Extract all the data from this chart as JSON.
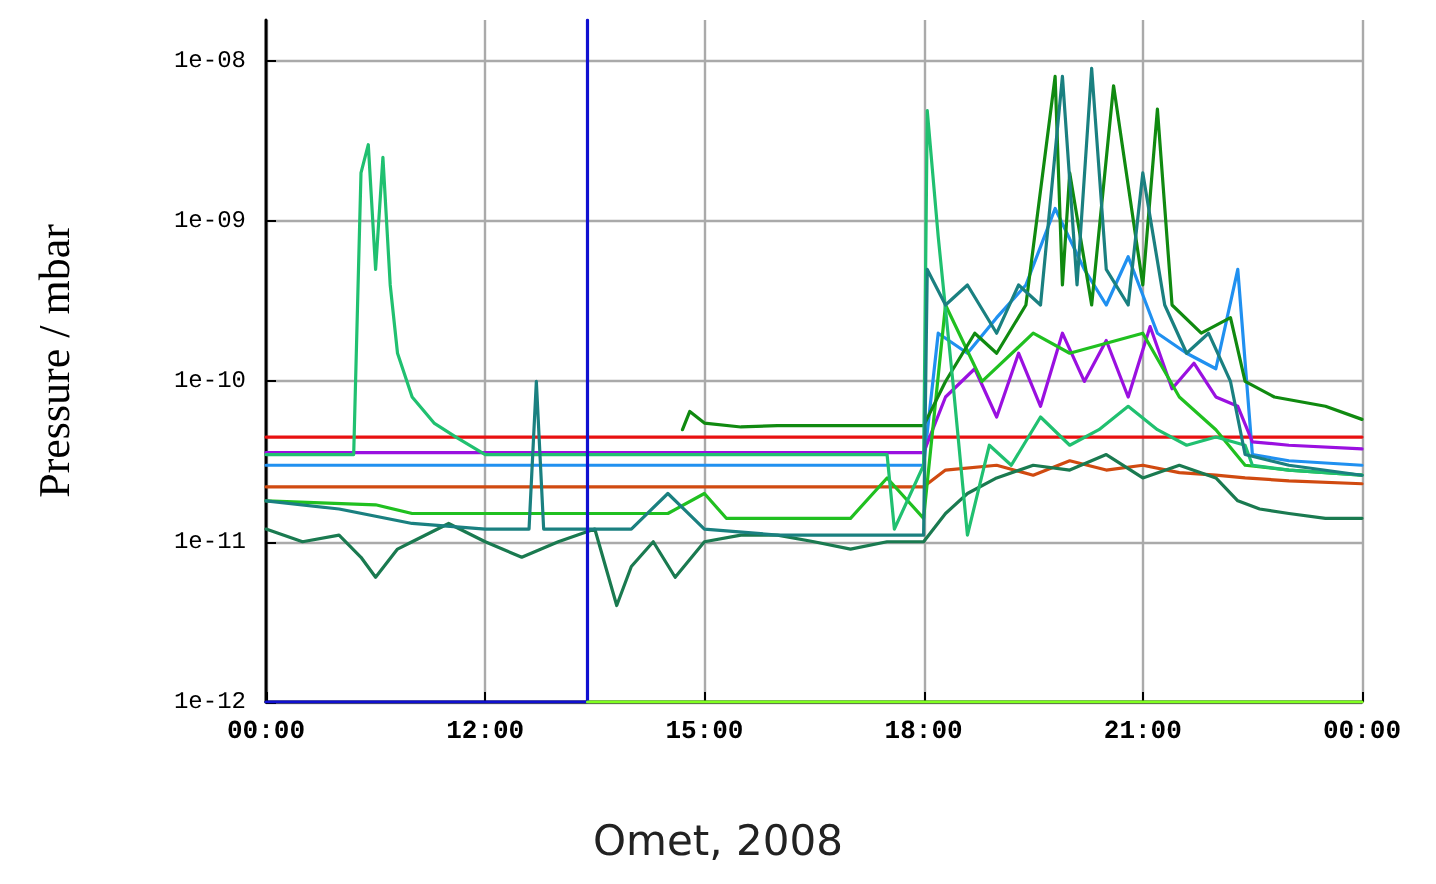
{
  "chart_data": {
    "type": "line",
    "ylabel": "Pressure / mbar",
    "annotations": [
      "Omet, 2008"
    ],
    "log": true,
    "grid": true,
    "marker": "none",
    "line_style": "solid",
    "xlim": [
      9,
      24
    ],
    "xticks": [
      {
        "value": 9,
        "label": "00:00"
      },
      {
        "value": 12,
        "label": "12:00"
      },
      {
        "value": 15,
        "label": "15:00"
      },
      {
        "value": 18,
        "label": "18:00"
      },
      {
        "value": 21,
        "label": "21:00"
      },
      {
        "value": 24,
        "label": "00:00"
      }
    ],
    "ylim": [
      1e-12,
      1.8e-08
    ],
    "yticks": [
      {
        "value": 1e-12,
        "label": "1e-12"
      },
      {
        "value": 1e-11,
        "label": "1e-11"
      },
      {
        "value": 1e-10,
        "label": "1e-10"
      },
      {
        "value": 1e-09,
        "label": "1e-09"
      },
      {
        "value": 1e-08,
        "label": "1e-08"
      }
    ],
    "series": [
      {
        "color": "#e81010",
        "x": [
          9,
          12,
          15,
          18,
          21,
          24
        ],
        "values": [
          4.5e-11,
          4.5e-11,
          4.5e-11,
          4.5e-11,
          4.5e-11,
          4.5e-11
        ]
      },
      {
        "color": "#d04a10",
        "x": [
          9,
          12,
          15,
          18,
          18.3,
          19,
          19.5,
          20,
          20.5,
          21,
          21.5,
          22,
          22.4,
          23,
          24
        ],
        "values": [
          2.2e-11,
          2.2e-11,
          2.2e-11,
          2.2e-11,
          2.8e-11,
          3e-11,
          2.6e-11,
          3.2e-11,
          2.8e-11,
          3e-11,
          2.7e-11,
          2.6e-11,
          2.5e-11,
          2.4e-11,
          2.3e-11
        ]
      },
      {
        "color": "#2090f0",
        "x": [
          9,
          12,
          15,
          16,
          18,
          18.2,
          18.6,
          19,
          19.4,
          19.8,
          20.2,
          20.5,
          20.8,
          21.2,
          21.6,
          22,
          22.3,
          22.5,
          23,
          24
        ],
        "values": [
          3e-11,
          3e-11,
          3e-11,
          3e-11,
          3e-11,
          2e-10,
          1.5e-10,
          2.5e-10,
          4e-10,
          1.2e-09,
          5e-10,
          3e-10,
          6e-10,
          2e-10,
          1.5e-10,
          1.2e-10,
          5e-10,
          3.5e-11,
          3.2e-11,
          3e-11
        ]
      },
      {
        "color": "#9a10e0",
        "x": [
          9,
          12,
          15,
          18,
          18.3,
          18.7,
          19,
          19.3,
          19.6,
          19.9,
          20.2,
          20.5,
          20.8,
          21.1,
          21.4,
          21.7,
          22,
          22.3,
          22.5,
          23,
          24
        ],
        "values": [
          3.6e-11,
          3.6e-11,
          3.6e-11,
          3.6e-11,
          8e-11,
          1.2e-10,
          6e-11,
          1.5e-10,
          7e-11,
          2e-10,
          1e-10,
          1.8e-10,
          8e-11,
          2.2e-10,
          9e-11,
          1.3e-10,
          8e-11,
          7e-11,
          4.2e-11,
          4e-11,
          3.8e-11
        ]
      },
      {
        "color": "#20c020",
        "x": [
          9,
          10.5,
          11,
          12,
          14.5,
          15,
          15.3,
          16,
          17,
          17.5,
          18,
          18.3,
          18.8,
          19.5,
          20,
          21,
          21.5,
          22,
          22.4,
          23,
          24
        ],
        "values": [
          1.8e-11,
          1.7e-11,
          1.5e-11,
          1.5e-11,
          1.5e-11,
          2e-11,
          1.4e-11,
          1.4e-11,
          1.4e-11,
          2.5e-11,
          1.4e-11,
          3e-10,
          1e-10,
          2e-10,
          1.5e-10,
          2e-10,
          8e-11,
          5e-11,
          3e-11,
          2.8e-11,
          2.6e-11
        ]
      },
      {
        "color": "#1a7a50",
        "x": [
          9,
          9.5,
          10,
          10.3,
          10.5,
          10.8,
          11,
          11.5,
          12,
          12.5,
          13,
          13.5,
          13.8,
          14,
          14.3,
          14.6,
          15,
          15.5,
          16,
          16.5,
          17,
          17.5,
          18,
          18.3,
          18.6,
          19,
          19.5,
          20,
          20.5,
          21,
          21.5,
          22,
          22.3,
          22.6,
          23,
          23.5,
          24
        ],
        "values": [
          1.2e-11,
          1e-11,
          1.1e-11,
          8e-12,
          6e-12,
          9e-12,
          1e-11,
          1.3e-11,
          1e-11,
          8e-12,
          1e-11,
          1.2e-11,
          4e-12,
          7e-12,
          1e-11,
          6e-12,
          1e-11,
          1.1e-11,
          1.1e-11,
          1e-11,
          9e-12,
          1e-11,
          1e-11,
          1.5e-11,
          2e-11,
          2.5e-11,
          3e-11,
          2.8e-11,
          3.5e-11,
          2.5e-11,
          3e-11,
          2.5e-11,
          1.8e-11,
          1.6e-11,
          1.5e-11,
          1.4e-11,
          1.4e-11
        ]
      },
      {
        "color": "#108a10",
        "x": [
          14.7,
          14.8,
          15,
          15.5,
          16,
          17,
          18,
          18.3,
          18.7,
          19,
          19.4,
          19.8,
          19.9,
          20,
          20.3,
          20.6,
          21,
          21.2,
          21.4,
          21.8,
          22.2,
          22.4,
          22.8,
          23.5,
          24
        ],
        "values": [
          5e-11,
          6.5e-11,
          5.5e-11,
          5.2e-11,
          5.3e-11,
          5.3e-11,
          5.3e-11,
          1e-10,
          2e-10,
          1.5e-10,
          3e-10,
          8e-09,
          4e-10,
          2e-09,
          3e-10,
          7e-09,
          4e-10,
          5e-09,
          3e-10,
          2e-10,
          2.5e-10,
          1e-10,
          8e-11,
          7e-11,
          5.8e-11
        ]
      },
      {
        "color": "#20c070",
        "x": [
          9,
          10.2,
          10.3,
          10.4,
          10.5,
          10.6,
          10.7,
          10.8,
          11,
          11.3,
          11.6,
          12,
          15,
          17.5,
          17.6,
          18,
          18.05,
          18.2,
          18.4,
          18.6,
          18.9,
          19.2,
          19.6,
          20,
          20.4,
          20.8,
          21.2,
          21.6,
          22,
          22.4,
          22.5,
          23,
          24
        ],
        "values": [
          3.5e-11,
          3.5e-11,
          2e-09,
          3e-09,
          5e-10,
          2.5e-09,
          4e-10,
          1.5e-10,
          8e-11,
          5.5e-11,
          4.5e-11,
          3.5e-11,
          3.5e-11,
          3.5e-11,
          1.2e-11,
          3e-11,
          4.9e-09,
          8e-10,
          1e-10,
          1.1e-11,
          4e-11,
          3e-11,
          6e-11,
          4e-11,
          5e-11,
          7e-11,
          5e-11,
          4e-11,
          4.5e-11,
          4e-11,
          3e-11,
          2.8e-11,
          2.6e-11
        ]
      },
      {
        "color": "#1a8080",
        "x": [
          9,
          10,
          11,
          12,
          12.6,
          12.7,
          12.8,
          13,
          14,
          14.5,
          15,
          16,
          17,
          18,
          18.05,
          18.3,
          18.6,
          19,
          19.3,
          19.6,
          19.9,
          20.1,
          20.3,
          20.5,
          20.8,
          21,
          21.3,
          21.6,
          21.9,
          22.2,
          22.4,
          23,
          24
        ],
        "values": [
          1.8e-11,
          1.6e-11,
          1.3e-11,
          1.2e-11,
          1.2e-11,
          1e-10,
          1.2e-11,
          1.2e-11,
          1.2e-11,
          2e-11,
          1.2e-11,
          1.1e-11,
          1.1e-11,
          1.1e-11,
          5e-10,
          3e-10,
          4e-10,
          2e-10,
          4e-10,
          3e-10,
          8e-09,
          4e-10,
          9e-09,
          5e-10,
          3e-10,
          2e-09,
          3e-10,
          1.5e-10,
          2e-10,
          1e-10,
          3.5e-11,
          3e-11,
          2.6e-11
        ]
      },
      {
        "color": "#1010d0",
        "x": [
          9,
          13.4,
          13.4
        ],
        "values": [
          1e-12,
          1e-12,
          1.8e-08
        ]
      },
      {
        "color": "#80ff20",
        "x": [
          13.4,
          24
        ],
        "values": [
          1e-12,
          1e-12
        ]
      }
    ]
  }
}
